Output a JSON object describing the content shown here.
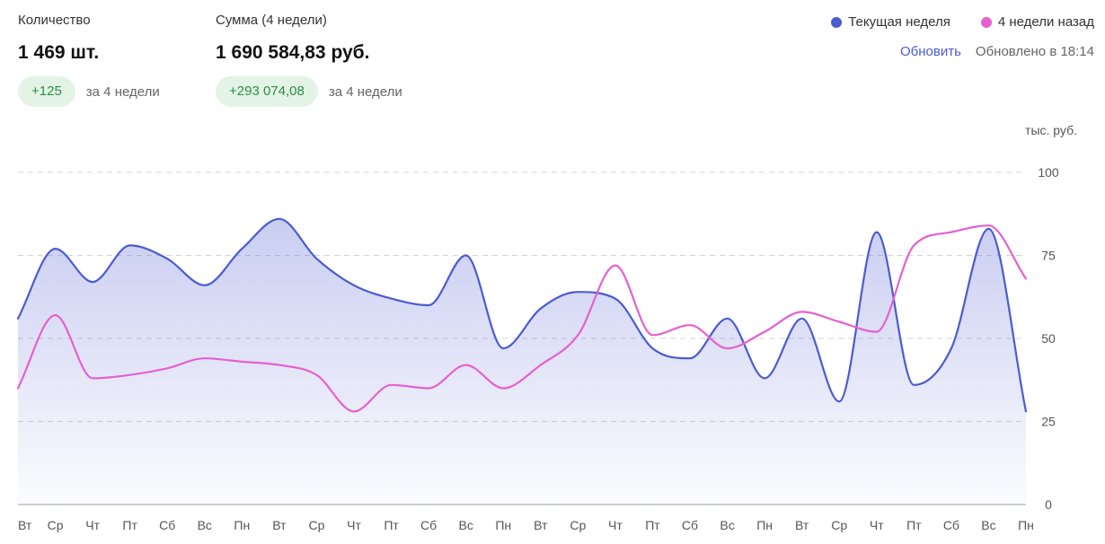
{
  "stats": {
    "quantity": {
      "label": "Количество",
      "value": "1 469 шт.",
      "delta": "+125",
      "period": "за 4 недели"
    },
    "sum": {
      "label": "Сумма (4 недели)",
      "value": "1 690 584,83 руб.",
      "delta": "+293 074,08",
      "period": "за 4 недели"
    }
  },
  "legend": {
    "current": {
      "label": "Текущая неделя",
      "color": "#4b5bd1"
    },
    "previous": {
      "label": "4 недели назад",
      "color": "#e660cf"
    }
  },
  "refresh": {
    "button_label": "Обновить",
    "updated_text": "Обновлено в 18:14"
  },
  "chart_data": {
    "type": "line",
    "unit_label": "тыс. руб.",
    "ylim": [
      0,
      100
    ],
    "yticks": [
      0,
      25,
      50,
      75,
      100
    ],
    "categories": [
      "Вт",
      "Ср",
      "Чт",
      "Пт",
      "Сб",
      "Вс",
      "Пн",
      "Вт",
      "Ср",
      "Чт",
      "Пт",
      "Сб",
      "Вс",
      "Пн",
      "Вт",
      "Ср",
      "Чт",
      "Пт",
      "Сб",
      "Вс",
      "Пн",
      "Вт",
      "Ср",
      "Чт",
      "Пт",
      "Сб",
      "Вс",
      "Пн"
    ],
    "series": [
      {
        "name": "Текущая неделя",
        "color": "#4b5bd1",
        "filled": true,
        "values": [
          56,
          77,
          67,
          78,
          74,
          66,
          77,
          86,
          74,
          66,
          62,
          60,
          75,
          47,
          59,
          64,
          62,
          47,
          44,
          56,
          38,
          56,
          31,
          82,
          36,
          47,
          83,
          28
        ]
      },
      {
        "name": "4 недели назад",
        "color": "#e660cf",
        "filled": false,
        "values": [
          35,
          57,
          38,
          39,
          41,
          44,
          43,
          42,
          39,
          28,
          36,
          35,
          42,
          35,
          42,
          51,
          72,
          51,
          54,
          47,
          52,
          58,
          55,
          52,
          78,
          82,
          84,
          68
        ]
      }
    ]
  }
}
